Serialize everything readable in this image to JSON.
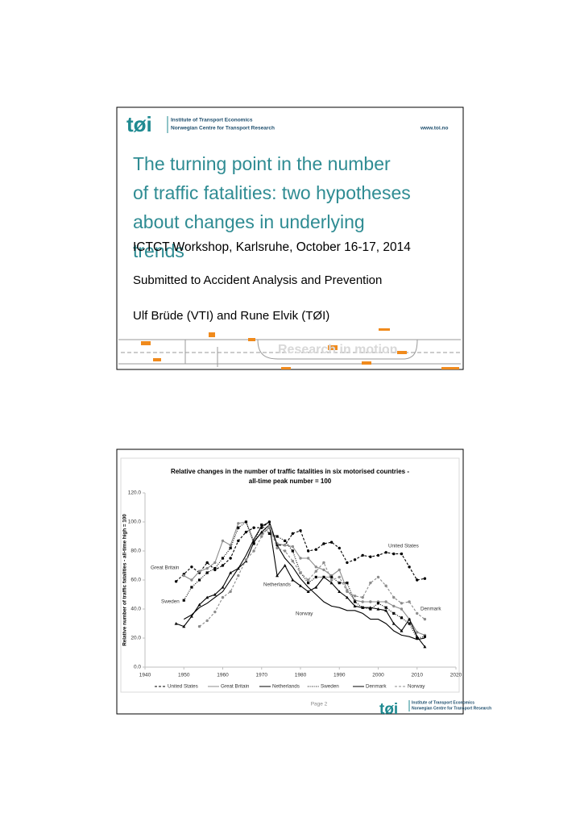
{
  "slide1": {
    "logo": "tøi",
    "logo_line1": "Institute of Transport Economics",
    "logo_line2": "Norwegian Centre for Transport Research",
    "website": "www.toi.no",
    "title": "The turning point in the number of traffic fatalities: two hypotheses about changes in underlying trends",
    "line1": "ICTCT Workshop, Karlsruhe, October 16-17, 2014",
    "line2": "Submitted to Accident Analysis and Prevention",
    "line3": "Ulf Brüde (VTI) and Rune Elvik (TØI)",
    "tagline": "Research in motion"
  },
  "slide2": {
    "page": "Page 2",
    "logo": "tøi",
    "logo_line1": "Institute of Transport Economics",
    "logo_line2": "Norwegian Centre for Transport Research"
  },
  "chart_data": {
    "type": "line",
    "title": [
      "Relative changes in the number of traffic fatalities in six motorised countries -",
      "all-time peak number = 100"
    ],
    "y_label": "Relative number of traffic fatalities - all-time high = 100",
    "x": [
      1948,
      1950,
      1952,
      1954,
      1956,
      1958,
      1960,
      1962,
      1964,
      1966,
      1968,
      1970,
      1972,
      1974,
      1976,
      1978,
      1980,
      1982,
      1984,
      1986,
      1988,
      1990,
      1992,
      1994,
      1996,
      1998,
      2000,
      2002,
      2004,
      2006,
      2008,
      2010,
      2012
    ],
    "xlim": [
      1940,
      2020
    ],
    "xticks": [
      1940,
      1950,
      1960,
      1970,
      1980,
      1990,
      2000,
      2010,
      2020
    ],
    "ylim": [
      0,
      120
    ],
    "yticks": [
      {
        "value": 0,
        "label": "0.0"
      },
      {
        "value": 20,
        "label": "20.0"
      },
      {
        "value": 40,
        "label": "40.0"
      },
      {
        "value": 60,
        "label": "60.0"
      },
      {
        "value": 80,
        "label": "80.0"
      },
      {
        "value": 100,
        "label": "100.0"
      },
      {
        "value": 120,
        "label": "120.0"
      }
    ],
    "legend": "bottom",
    "series": [
      {
        "name": "United States",
        "color": "#000000",
        "linestyle": "dashed",
        "marker": "circle",
        "values": [
          59,
          64,
          69,
          65,
          72,
          67,
          70,
          75,
          87,
          93,
          96,
          96,
          100,
          84,
          84,
          92,
          94,
          80,
          81,
          85,
          86,
          82,
          72,
          74,
          77,
          76,
          77,
          79,
          78,
          78,
          69,
          60,
          61
        ]
      },
      {
        "name": "Great Britain",
        "color": "#8c8c8c",
        "linestyle": "solid",
        "marker": "circle",
        "values": [
          null,
          63,
          60,
          66,
          68,
          72,
          87,
          84,
          99,
          100,
          87,
          92,
          96,
          85,
          84,
          83,
          75,
          75,
          69,
          67,
          63,
          67,
          53,
          46,
          45,
          45,
          45,
          45,
          42,
          40,
          33,
          24,
          22
        ]
      },
      {
        "name": "Netherlands",
        "color": "#000000",
        "linestyle": "solid",
        "marker": "none",
        "values": [
          null,
          33,
          36,
          41,
          44,
          48,
          52,
          60,
          68,
          77,
          88,
          97,
          100,
          84,
          75,
          69,
          61,
          55,
          50,
          45,
          42,
          41,
          39,
          39,
          37,
          33,
          33,
          30,
          25,
          22,
          21,
          19,
          20
        ]
      },
      {
        "name": "Sweden",
        "color": "#000000",
        "linestyle": "dotted",
        "marker": "square",
        "values": [
          null,
          46,
          55,
          60,
          65,
          68,
          75,
          82,
          96,
          100,
          85,
          98,
          92,
          90,
          87,
          80,
          65,
          58,
          62,
          62,
          62,
          58,
          58,
          45,
          41,
          40,
          44,
          41,
          37,
          34,
          30,
          20,
          21
        ]
      },
      {
        "name": "Denmark",
        "color": "#000000",
        "linestyle": "solid",
        "marker": "triangle",
        "values": [
          30,
          28,
          35,
          43,
          48,
          50,
          55,
          65,
          68,
          73,
          86,
          93,
          98,
          63,
          70,
          60,
          56,
          52,
          55,
          62,
          58,
          52,
          48,
          42,
          41,
          41,
          40,
          39,
          30,
          25,
          33,
          21,
          14
        ]
      },
      {
        "name": "Norway",
        "color": "#8c8c8c",
        "linestyle": "dashed",
        "marker": "circle",
        "values": [
          null,
          null,
          null,
          28,
          32,
          38,
          48,
          52,
          63,
          74,
          80,
          90,
          97,
          82,
          80,
          73,
          65,
          60,
          66,
          72,
          60,
          62,
          52,
          49,
          48,
          58,
          62,
          56,
          48,
          44,
          45,
          37,
          33
        ]
      }
    ]
  }
}
